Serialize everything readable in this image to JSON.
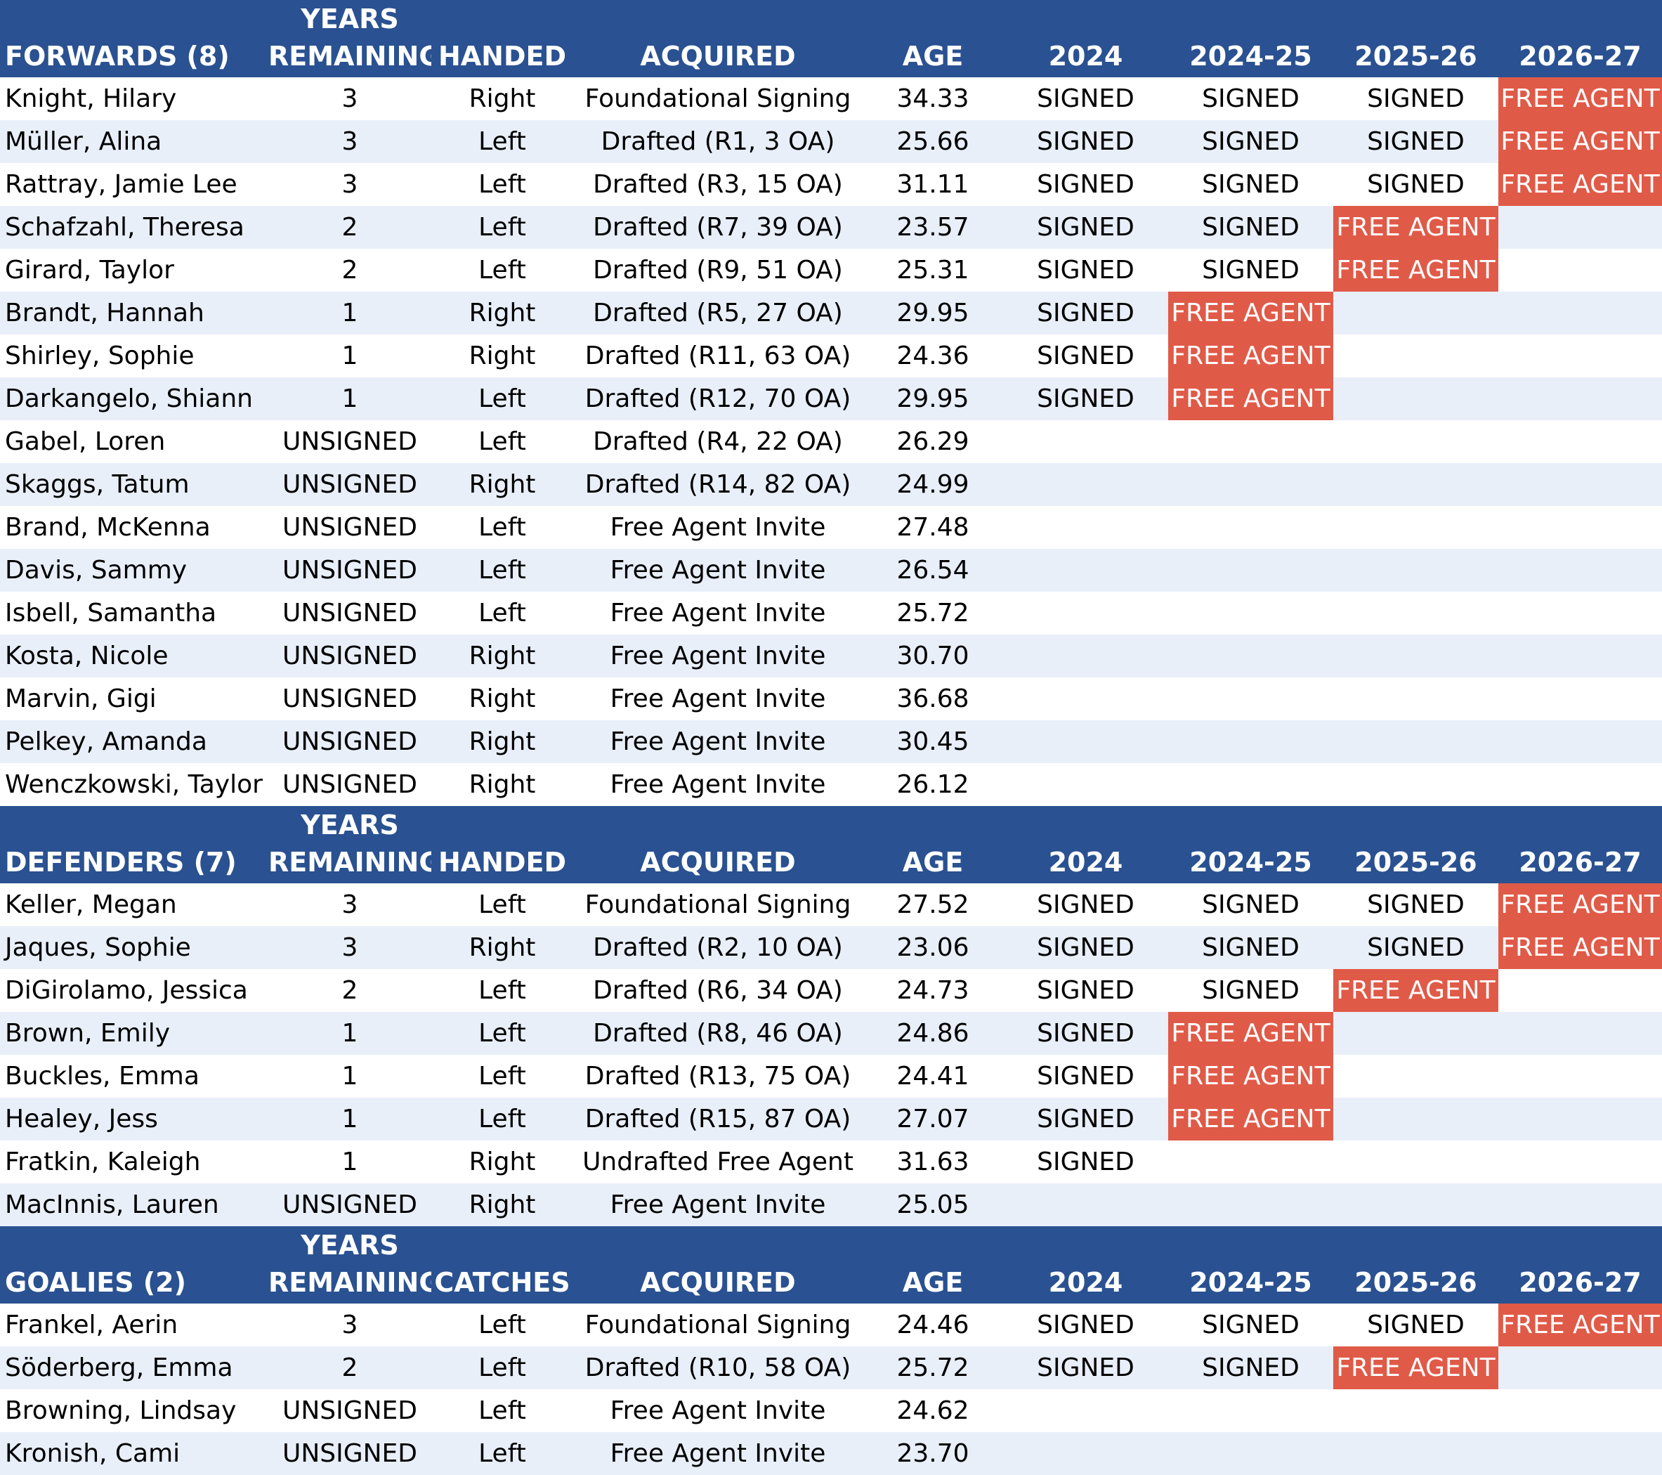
{
  "season_headers": [
    "2024",
    "2024-25",
    "2025-26",
    "2026-27"
  ],
  "status_labels": {
    "signed": "SIGNED",
    "free_agent": "FREE AGENT"
  },
  "sections": [
    {
      "title": "FORWARDS (8)",
      "col_years_line1": "YEARS",
      "col_years_line2": "REMAINING",
      "col_hand": "HANDED",
      "col_acquired": "ACQUIRED",
      "col_age": "AGE",
      "players": [
        {
          "name": "Knight, Hilary",
          "years": "3",
          "hand": "Right",
          "acquired": "Foundational Signing",
          "age": "34.33",
          "seasons": [
            "SIGNED",
            "SIGNED",
            "SIGNED",
            "FREE AGENT"
          ]
        },
        {
          "name": "Müller, Alina",
          "years": "3",
          "hand": "Left",
          "acquired": "Drafted (R1, 3 OA)",
          "age": "25.66",
          "seasons": [
            "SIGNED",
            "SIGNED",
            "SIGNED",
            "FREE AGENT"
          ]
        },
        {
          "name": "Rattray, Jamie Lee",
          "years": "3",
          "hand": "Left",
          "acquired": "Drafted (R3, 15 OA)",
          "age": "31.11",
          "seasons": [
            "SIGNED",
            "SIGNED",
            "SIGNED",
            "FREE AGENT"
          ]
        },
        {
          "name": "Schafzahl, Theresa",
          "years": "2",
          "hand": "Left",
          "acquired": "Drafted (R7, 39 OA)",
          "age": "23.57",
          "seasons": [
            "SIGNED",
            "SIGNED",
            "FREE AGENT",
            ""
          ]
        },
        {
          "name": "Girard, Taylor",
          "years": "2",
          "hand": "Left",
          "acquired": "Drafted (R9, 51 OA)",
          "age": "25.31",
          "seasons": [
            "SIGNED",
            "SIGNED",
            "FREE AGENT",
            ""
          ]
        },
        {
          "name": "Brandt, Hannah",
          "years": "1",
          "hand": "Right",
          "acquired": "Drafted (R5, 27 OA)",
          "age": "29.95",
          "seasons": [
            "SIGNED",
            "FREE AGENT",
            "",
            ""
          ]
        },
        {
          "name": "Shirley, Sophie",
          "years": "1",
          "hand": "Right",
          "acquired": "Drafted (R11, 63 OA)",
          "age": "24.36",
          "seasons": [
            "SIGNED",
            "FREE AGENT",
            "",
            ""
          ]
        },
        {
          "name": "Darkangelo, Shiann",
          "years": "1",
          "hand": "Left",
          "acquired": "Drafted (R12, 70 OA)",
          "age": "29.95",
          "seasons": [
            "SIGNED",
            "FREE AGENT",
            "",
            ""
          ]
        },
        {
          "name": "Gabel, Loren",
          "years": "UNSIGNED",
          "hand": "Left",
          "acquired": "Drafted (R4, 22 OA)",
          "age": "26.29",
          "seasons": [
            "",
            "",
            "",
            ""
          ]
        },
        {
          "name": "Skaggs, Tatum",
          "years": "UNSIGNED",
          "hand": "Right",
          "acquired": "Drafted (R14, 82 OA)",
          "age": "24.99",
          "seasons": [
            "",
            "",
            "",
            ""
          ]
        },
        {
          "name": "Brand, McKenna",
          "years": "UNSIGNED",
          "hand": "Left",
          "acquired": "Free Agent Invite",
          "age": "27.48",
          "seasons": [
            "",
            "",
            "",
            ""
          ]
        },
        {
          "name": "Davis, Sammy",
          "years": "UNSIGNED",
          "hand": "Left",
          "acquired": "Free Agent Invite",
          "age": "26.54",
          "seasons": [
            "",
            "",
            "",
            ""
          ]
        },
        {
          "name": "Isbell, Samantha",
          "years": "UNSIGNED",
          "hand": "Left",
          "acquired": "Free Agent Invite",
          "age": "25.72",
          "seasons": [
            "",
            "",
            "",
            ""
          ]
        },
        {
          "name": "Kosta, Nicole",
          "years": "UNSIGNED",
          "hand": "Right",
          "acquired": "Free Agent Invite",
          "age": "30.70",
          "seasons": [
            "",
            "",
            "",
            ""
          ]
        },
        {
          "name": "Marvin, Gigi",
          "years": "UNSIGNED",
          "hand": "Right",
          "acquired": "Free Agent Invite",
          "age": "36.68",
          "seasons": [
            "",
            "",
            "",
            ""
          ]
        },
        {
          "name": "Pelkey, Amanda",
          "years": "UNSIGNED",
          "hand": "Right",
          "acquired": "Free Agent Invite",
          "age": "30.45",
          "seasons": [
            "",
            "",
            "",
            ""
          ]
        },
        {
          "name": "Wenczkowski, Taylor",
          "years": "UNSIGNED",
          "hand": "Right",
          "acquired": "Free Agent Invite",
          "age": "26.12",
          "seasons": [
            "",
            "",
            "",
            ""
          ]
        }
      ]
    },
    {
      "title": "DEFENDERS (7)",
      "col_years_line1": "YEARS",
      "col_years_line2": "REMAINING",
      "col_hand": "HANDED",
      "col_acquired": "ACQUIRED",
      "col_age": "AGE",
      "players": [
        {
          "name": "Keller, Megan",
          "years": "3",
          "hand": "Left",
          "acquired": "Foundational Signing",
          "age": "27.52",
          "seasons": [
            "SIGNED",
            "SIGNED",
            "SIGNED",
            "FREE AGENT"
          ]
        },
        {
          "name": "Jaques, Sophie",
          "years": "3",
          "hand": "Right",
          "acquired": "Drafted (R2, 10 OA)",
          "age": "23.06",
          "seasons": [
            "SIGNED",
            "SIGNED",
            "SIGNED",
            "FREE AGENT"
          ]
        },
        {
          "name": "DiGirolamo, Jessica",
          "years": "2",
          "hand": "Left",
          "acquired": "Drafted (R6, 34 OA)",
          "age": "24.73",
          "seasons": [
            "SIGNED",
            "SIGNED",
            "FREE AGENT",
            ""
          ]
        },
        {
          "name": "Brown, Emily",
          "years": "1",
          "hand": "Left",
          "acquired": "Drafted (R8, 46 OA)",
          "age": "24.86",
          "seasons": [
            "SIGNED",
            "FREE AGENT",
            "",
            ""
          ]
        },
        {
          "name": "Buckles, Emma",
          "years": "1",
          "hand": "Left",
          "acquired": "Drafted (R13, 75 OA)",
          "age": "24.41",
          "seasons": [
            "SIGNED",
            "FREE AGENT",
            "",
            ""
          ]
        },
        {
          "name": "Healey, Jess",
          "years": "1",
          "hand": "Left",
          "acquired": "Drafted (R15, 87 OA)",
          "age": "27.07",
          "seasons": [
            "SIGNED",
            "FREE AGENT",
            "",
            ""
          ]
        },
        {
          "name": "Fratkin, Kaleigh",
          "years": "1",
          "hand": "Right",
          "acquired": "Undrafted Free Agent",
          "age": "31.63",
          "seasons": [
            "SIGNED",
            "",
            "",
            ""
          ]
        },
        {
          "name": "MacInnis, Lauren",
          "years": "UNSIGNED",
          "hand": "Right",
          "acquired": "Free Agent Invite",
          "age": "25.05",
          "seasons": [
            "",
            "",
            "",
            ""
          ]
        }
      ]
    },
    {
      "title": "GOALIES (2)",
      "col_years_line1": "YEARS",
      "col_years_line2": "REMAINING",
      "col_hand": "CATCHES",
      "col_acquired": "ACQUIRED",
      "col_age": "AGE",
      "players": [
        {
          "name": "Frankel, Aerin",
          "years": "3",
          "hand": "Left",
          "acquired": "Foundational Signing",
          "age": "24.46",
          "seasons": [
            "SIGNED",
            "SIGNED",
            "SIGNED",
            "FREE AGENT"
          ]
        },
        {
          "name": "Söderberg, Emma",
          "years": "2",
          "hand": "Left",
          "acquired": "Drafted (R10, 58 OA)",
          "age": "25.72",
          "seasons": [
            "SIGNED",
            "SIGNED",
            "FREE AGENT",
            ""
          ]
        },
        {
          "name": "Browning, Lindsay",
          "years": "UNSIGNED",
          "hand": "Left",
          "acquired": "Free Agent Invite",
          "age": "24.62",
          "seasons": [
            "",
            "",
            "",
            ""
          ]
        },
        {
          "name": "Kronish, Cami",
          "years": "UNSIGNED",
          "hand": "Left",
          "acquired": "Free Agent Invite",
          "age": "23.70",
          "seasons": [
            "",
            "",
            "",
            ""
          ]
        }
      ]
    }
  ],
  "colors": {
    "header_bg": "#2a5191",
    "band_bg": "#e8eff9",
    "free_agent_bg": "#e05a48"
  }
}
